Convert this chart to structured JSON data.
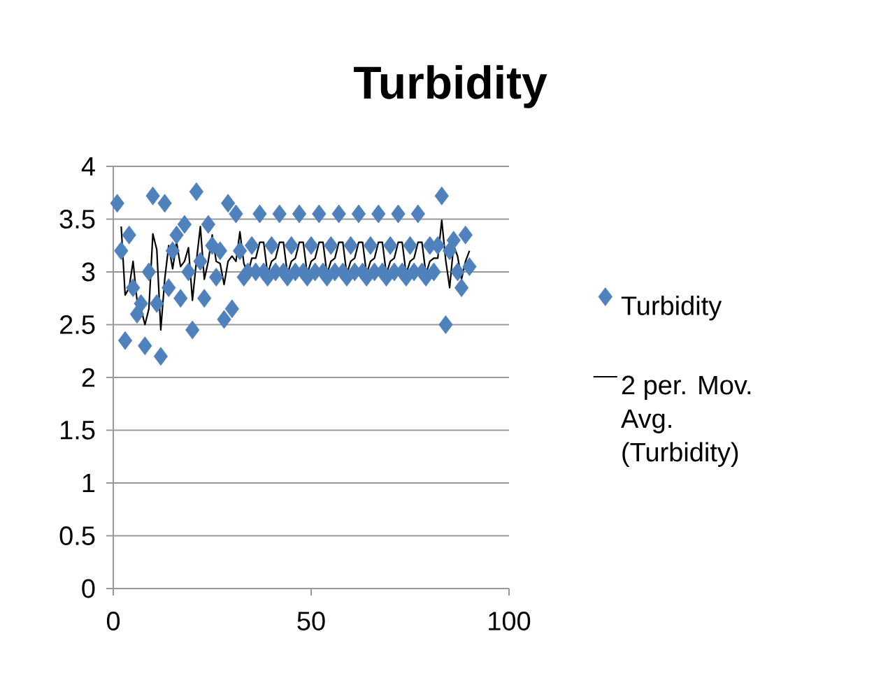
{
  "chart_data": {
    "type": "scatter",
    "title": "Turbidity",
    "xlim": [
      0,
      100
    ],
    "xticks": [
      0,
      50,
      100
    ],
    "ylim": [
      0,
      4
    ],
    "yticks": [
      0,
      0.5,
      1,
      1.5,
      2,
      2.5,
      3,
      3.5,
      4
    ],
    "grid": "y",
    "legend": "right",
    "series": [
      {
        "name": "Turbidity",
        "color": "#4f81bd",
        "marker": "diamond",
        "x": [
          1,
          2,
          3,
          4,
          5,
          6,
          7,
          8,
          9,
          10,
          11,
          12,
          13,
          14,
          15,
          16,
          17,
          18,
          19,
          20,
          21,
          22,
          23,
          24,
          25,
          26,
          27,
          28,
          29,
          30,
          31,
          32,
          33,
          34,
          35,
          36,
          37,
          38,
          39,
          40,
          41,
          42,
          43,
          44,
          45,
          46,
          47,
          48,
          49,
          50,
          51,
          52,
          53,
          54,
          55,
          56,
          57,
          58,
          59,
          60,
          61,
          62,
          63,
          64,
          65,
          66,
          67,
          68,
          69,
          70,
          71,
          72,
          73,
          74,
          75,
          76,
          77,
          78,
          79,
          80,
          81,
          82,
          83,
          84,
          85,
          86,
          87,
          88,
          89,
          90
        ],
        "values": [
          3.65,
          3.2,
          2.35,
          3.35,
          2.85,
          2.6,
          2.7,
          2.3,
          3.0,
          3.72,
          2.7,
          2.2,
          3.65,
          2.85,
          3.2,
          3.35,
          2.75,
          3.45,
          3.0,
          2.45,
          3.76,
          3.1,
          2.75,
          3.45,
          3.25,
          2.95,
          3.2,
          2.55,
          3.65,
          2.65,
          3.55,
          3.2,
          2.95,
          3.0,
          3.25,
          3.0,
          3.55,
          3.0,
          2.95,
          3.25,
          3.0,
          3.55,
          3.0,
          2.95,
          3.25,
          3.0,
          3.55,
          3.0,
          2.95,
          3.25,
          3.0,
          3.55,
          3.0,
          2.95,
          3.25,
          3.0,
          3.55,
          3.0,
          2.95,
          3.25,
          3.0,
          3.55,
          3.0,
          2.95,
          3.25,
          3.0,
          3.55,
          3.0,
          2.95,
          3.25,
          3.0,
          3.55,
          3.0,
          2.95,
          3.25,
          3.0,
          3.55,
          3.0,
          2.95,
          3.25,
          3.0,
          3.25,
          3.72,
          2.5,
          3.2,
          3.3,
          3.0,
          2.85,
          3.35,
          3.05
        ]
      },
      {
        "name": "2 per. Mov. Avg. (Turbidity)",
        "type": "line",
        "color": "#000000",
        "marker": "none",
        "line_style": "solid",
        "x": [
          2,
          3,
          4,
          5,
          6,
          7,
          8,
          9,
          10,
          11,
          12,
          13,
          14,
          15,
          16,
          17,
          18,
          19,
          20,
          21,
          22,
          23,
          24,
          25,
          26,
          27,
          28,
          29,
          30,
          31,
          32,
          33,
          34,
          35,
          36,
          37,
          38,
          39,
          40,
          41,
          42,
          43,
          44,
          45,
          46,
          47,
          48,
          49,
          50,
          51,
          52,
          53,
          54,
          55,
          56,
          57,
          58,
          59,
          60,
          61,
          62,
          63,
          64,
          65,
          66,
          67,
          68,
          69,
          70,
          71,
          72,
          73,
          74,
          75,
          76,
          77,
          78,
          79,
          80,
          81,
          82,
          83,
          84,
          85,
          86,
          87,
          88,
          89,
          90
        ],
        "values": [
          3.43,
          2.78,
          2.85,
          3.1,
          2.73,
          2.65,
          2.5,
          2.65,
          3.36,
          3.21,
          2.45,
          2.93,
          3.25,
          3.03,
          3.28,
          3.05,
          3.1,
          3.23,
          2.73,
          3.1,
          3.43,
          2.93,
          3.1,
          3.35,
          3.1,
          3.08,
          2.88,
          3.1,
          3.15,
          3.1,
          3.38,
          3.08,
          2.98,
          3.13,
          3.13,
          3.28,
          3.28,
          2.98,
          3.1,
          3.13,
          3.28,
          3.28,
          2.98,
          3.1,
          3.13,
          3.28,
          3.28,
          2.98,
          3.1,
          3.13,
          3.28,
          3.28,
          2.98,
          3.1,
          3.13,
          3.28,
          3.28,
          2.98,
          3.1,
          3.13,
          3.28,
          3.28,
          2.98,
          3.1,
          3.13,
          3.28,
          3.28,
          2.98,
          3.1,
          3.13,
          3.28,
          3.28,
          2.98,
          3.1,
          3.13,
          3.28,
          3.28,
          2.98,
          3.1,
          3.13,
          3.13,
          3.49,
          3.11,
          2.85,
          3.25,
          3.15,
          2.93,
          3.1,
          3.2
        ]
      }
    ]
  }
}
